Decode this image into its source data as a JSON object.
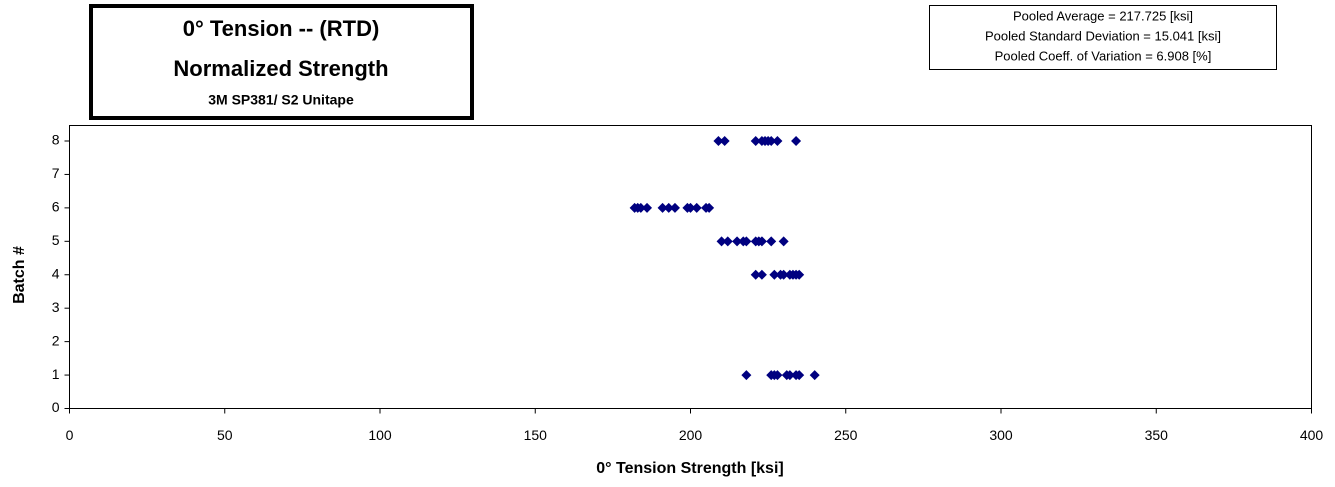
{
  "chart_data": {
    "type": "scatter",
    "title": "0° Tension -- (RTD)",
    "subtitle": "Normalized Strength",
    "material": "3M SP381/ S2 Unitape",
    "annotations": [
      "Pooled Average = 217.725 [ksi]",
      "Pooled Standard Deviation = 15.041  [ksi]",
      "Pooled Coeff. of  Variation = 6.908 [%]"
    ],
    "x_label": "0° Tension Strength  [ksi]",
    "y_label": "Batch #",
    "xlim": [
      0,
      400
    ],
    "xticks": [
      0,
      50,
      100,
      150,
      200,
      250,
      300,
      350,
      400
    ],
    "ylim": [
      0,
      8
    ],
    "yticks": [
      0,
      1,
      2,
      3,
      4,
      5,
      6,
      7,
      8
    ],
    "series": [
      {
        "color": "#000080",
        "x": [
          209,
          211,
          221,
          223,
          224,
          225,
          226,
          228,
          234,
          182,
          183,
          184,
          186,
          191,
          193,
          195,
          199,
          200,
          202,
          205,
          206,
          210,
          212,
          215,
          217,
          218,
          221,
          222,
          223,
          226,
          230,
          221,
          223,
          227,
          229,
          230,
          232,
          233,
          234,
          235,
          218,
          226,
          227,
          228,
          231,
          232,
          234,
          235,
          240
        ],
        "values": [
          8,
          8,
          8,
          8,
          8,
          8,
          8,
          8,
          8,
          6,
          6,
          6,
          6,
          6,
          6,
          6,
          6,
          6,
          6,
          6,
          6,
          5,
          5,
          5,
          5,
          5,
          5,
          5,
          5,
          5,
          5,
          4,
          4,
          4,
          4,
          4,
          4,
          4,
          4,
          4,
          1,
          1,
          1,
          1,
          1,
          1,
          1,
          1,
          1
        ]
      }
    ]
  }
}
